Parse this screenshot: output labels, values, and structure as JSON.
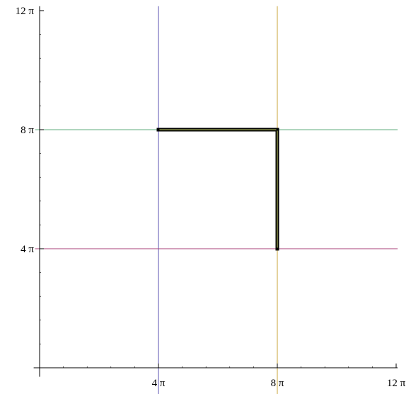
{
  "chart_data": {
    "type": "line",
    "title": "",
    "xlabel": "",
    "ylabel": "",
    "xlim": [
      -0.2,
      12.05
    ],
    "ylim": [
      -0.3,
      12.15
    ],
    "x_ticks": [
      {
        "value": 4,
        "label": "4 π"
      },
      {
        "value": 8,
        "label": "8 π"
      },
      {
        "value": 12,
        "label": "12 π"
      }
    ],
    "y_ticks": [
      {
        "value": 4,
        "label": "4 π"
      },
      {
        "value": 8,
        "label": "8 π"
      },
      {
        "value": 12,
        "label": "12 π"
      }
    ],
    "unit_note": "x and y values are multiples of π",
    "reference_lines": [
      {
        "orientation": "vertical",
        "value": 4,
        "color": "#5a52b0"
      },
      {
        "orientation": "vertical",
        "value": 8,
        "color": "#c9a43a"
      },
      {
        "orientation": "horizontal",
        "value": 8,
        "color": "#5fae7c"
      },
      {
        "orientation": "horizontal",
        "value": 4,
        "color": "#a8407a"
      }
    ],
    "path": {
      "color": "#000000",
      "highlight": "#c8d36a",
      "points": [
        [
          4,
          8
        ],
        [
          8,
          8
        ],
        [
          8,
          4
        ]
      ]
    }
  }
}
